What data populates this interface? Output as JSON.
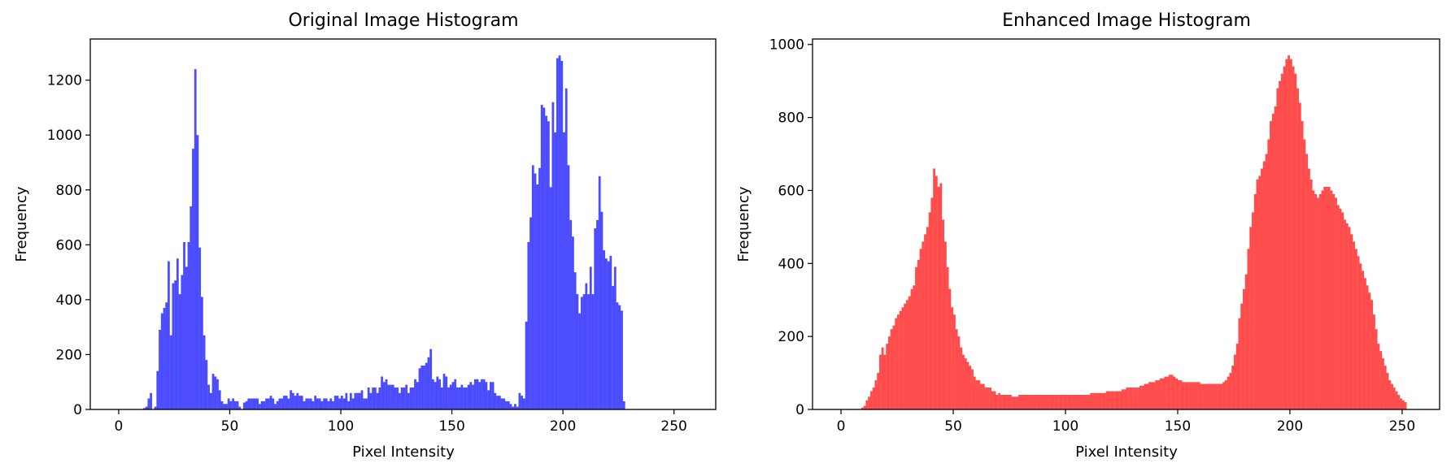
{
  "chart_data": [
    {
      "type": "bar",
      "title": "Original Image Histogram",
      "xlabel": "Pixel Intensity",
      "ylabel": "Frequency",
      "xlim": [
        -12.8,
        268.8
      ],
      "ylim": [
        0,
        1350
      ],
      "xticks": [
        0,
        50,
        100,
        150,
        200,
        250
      ],
      "yticks": [
        0,
        200,
        400,
        600,
        800,
        1000,
        1200
      ],
      "color": "#0000ff",
      "opacity": 0.7,
      "bin_start": 0,
      "values": [
        0,
        0,
        0,
        0,
        0,
        0,
        0,
        0,
        0,
        0,
        0,
        5,
        10,
        40,
        60,
        0,
        10,
        140,
        290,
        350,
        370,
        390,
        540,
        270,
        460,
        470,
        550,
        420,
        490,
        610,
        520,
        610,
        740,
        950,
        1240,
        1000,
        590,
        410,
        270,
        180,
        90,
        60,
        130,
        120,
        110,
        70,
        30,
        20,
        20,
        40,
        30,
        40,
        30,
        30,
        10,
        0,
        25,
        30,
        40,
        40,
        40,
        40,
        40,
        20,
        30,
        30,
        40,
        40,
        50,
        40,
        20,
        30,
        40,
        40,
        50,
        50,
        40,
        70,
        60,
        50,
        60,
        50,
        50,
        30,
        40,
        40,
        40,
        30,
        50,
        40,
        40,
        30,
        40,
        40,
        30,
        40,
        30,
        50,
        50,
        40,
        50,
        40,
        60,
        30,
        60,
        40,
        60,
        60,
        60,
        70,
        40,
        40,
        80,
        60,
        80,
        80,
        60,
        80,
        120,
        100,
        110,
        90,
        90,
        90,
        80,
        80,
        60,
        80,
        80,
        90,
        60,
        80,
        80,
        110,
        100,
        150,
        160,
        160,
        170,
        190,
        220,
        110,
        100,
        120,
        110,
        80,
        130,
        120,
        80,
        90,
        100,
        110,
        80,
        80,
        90,
        80,
        80,
        90,
        100,
        90,
        110,
        110,
        100,
        110,
        110,
        100,
        70,
        100,
        100,
        60,
        50,
        50,
        40,
        40,
        30,
        30,
        20,
        10,
        20,
        10,
        60,
        50,
        40,
        320,
        610,
        700,
        890,
        860,
        820,
        880,
        1110,
        1100,
        1070,
        1050,
        810,
        1120,
        1010,
        1280,
        1290,
        1270,
        1010,
        1170,
        890,
        690,
        630,
        500,
        420,
        350,
        410,
        420,
        460,
        420,
        520,
        420,
        660,
        690,
        850,
        720,
        580,
        550,
        540,
        560,
        450,
        520,
        390,
        380,
        360,
        30,
        0,
        0,
        0,
        0,
        0,
        0,
        0,
        0,
        0,
        0,
        0,
        0,
        0,
        0,
        0,
        0,
        0
      ]
    },
    {
      "type": "bar",
      "title": "Enhanced Image Histogram",
      "xlabel": "Pixel Intensity",
      "ylabel": "Frequency",
      "xlim": [
        -12.7,
        266.7
      ],
      "ylim": [
        0,
        1015
      ],
      "xticks": [
        0,
        50,
        100,
        150,
        200,
        250
      ],
      "yticks": [
        0,
        200,
        400,
        600,
        800,
        1000
      ],
      "color": "#ff0000",
      "opacity": 0.7,
      "bin_start": 0,
      "values": [
        0,
        0,
        0,
        0,
        0,
        0,
        0,
        0,
        0,
        5,
        10,
        25,
        35,
        50,
        60,
        80,
        100,
        150,
        170,
        150,
        180,
        200,
        220,
        230,
        250,
        260,
        270,
        280,
        290,
        300,
        310,
        330,
        340,
        390,
        410,
        440,
        460,
        480,
        500,
        540,
        580,
        660,
        640,
        610,
        620,
        520,
        460,
        390,
        330,
        280,
        260,
        220,
        200,
        170,
        150,
        140,
        130,
        120,
        110,
        90,
        80,
        80,
        70,
        70,
        60,
        60,
        60,
        50,
        50,
        40,
        45,
        40,
        40,
        40,
        40,
        40,
        35,
        35,
        35,
        40,
        40,
        40,
        40,
        40,
        40,
        40,
        40,
        40,
        40,
        40,
        40,
        40,
        40,
        40,
        40,
        40,
        40,
        40,
        40,
        40,
        40,
        40,
        40,
        40,
        40,
        40,
        40,
        40,
        40,
        40,
        40,
        45,
        45,
        45,
        45,
        45,
        45,
        45,
        50,
        50,
        50,
        50,
        50,
        50,
        50,
        55,
        55,
        60,
        60,
        60,
        60,
        60,
        60,
        65,
        65,
        70,
        70,
        75,
        75,
        75,
        80,
        80,
        85,
        85,
        90,
        90,
        95,
        95,
        90,
        85,
        80,
        80,
        75,
        75,
        75,
        75,
        75,
        75,
        75,
        75,
        70,
        70,
        70,
        70,
        70,
        70,
        70,
        70,
        70,
        70,
        75,
        80,
        90,
        100,
        120,
        150,
        180,
        250,
        290,
        330,
        370,
        440,
        500,
        540,
        590,
        630,
        640,
        660,
        680,
        700,
        740,
        790,
        810,
        830,
        880,
        900,
        920,
        940,
        960,
        970,
        960,
        940,
        920,
        880,
        840,
        790,
        740,
        700,
        660,
        630,
        600,
        590,
        580,
        590,
        600,
        610,
        610,
        610,
        600,
        590,
        580,
        560,
        550,
        540,
        520,
        510,
        500,
        480,
        460,
        440,
        420,
        400,
        380,
        360,
        340,
        320,
        300,
        260,
        220,
        180,
        160,
        140,
        120,
        100,
        80,
        70,
        60,
        50,
        40,
        30,
        25,
        20,
        0,
        0,
        0,
        0,
        0,
        0,
        0,
        0
      ]
    }
  ]
}
